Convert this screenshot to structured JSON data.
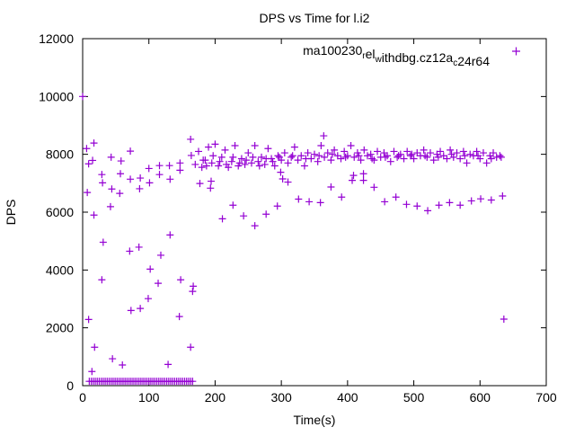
{
  "chart_data": {
    "type": "scatter",
    "title": "DPS vs Time for l.i2",
    "xlabel": "Time(s)",
    "ylabel": "DPS",
    "xlim": [
      0,
      700
    ],
    "ylim": [
      0,
      12000
    ],
    "xticks": [
      0,
      100,
      200,
      300,
      400,
      500,
      600,
      700
    ],
    "yticks": [
      0,
      2000,
      4000,
      6000,
      8000,
      10000,
      12000
    ],
    "grid": false,
    "legend_position": "top-right",
    "series": [
      {
        "name": "ma100230_rel_withdbg.cz12a_c24r64",
        "color": "#9400d3",
        "marker": "plus",
        "points": [
          [
            0,
            10000
          ],
          [
            6,
            8200
          ],
          [
            17,
            8390
          ],
          [
            9,
            7670
          ],
          [
            15,
            7790
          ],
          [
            7,
            6680
          ],
          [
            17,
            5900
          ],
          [
            29,
            7300
          ],
          [
            30,
            7015
          ],
          [
            43,
            7900
          ],
          [
            44,
            6800
          ],
          [
            42,
            6190
          ],
          [
            31,
            4960
          ],
          [
            29,
            3660
          ],
          [
            9,
            2290
          ],
          [
            18,
            1330
          ],
          [
            14,
            490
          ],
          [
            45,
            930
          ],
          [
            60,
            715
          ],
          [
            58,
            7770
          ],
          [
            57,
            7330
          ],
          [
            56,
            6650
          ],
          [
            72,
            8110
          ],
          [
            72,
            7140
          ],
          [
            71,
            4650
          ],
          [
            73,
            2600
          ],
          [
            87,
            7180
          ],
          [
            86,
            6810
          ],
          [
            85,
            4790
          ],
          [
            87,
            2670
          ],
          [
            100,
            7510
          ],
          [
            101,
            7015
          ],
          [
            102,
            4030
          ],
          [
            99,
            3010
          ],
          [
            116,
            7610
          ],
          [
            116,
            7300
          ],
          [
            118,
            4510
          ],
          [
            114,
            3540
          ],
          [
            131,
            7610
          ],
          [
            132,
            7140
          ],
          [
            132,
            5210
          ],
          [
            129,
            735
          ],
          [
            147,
            7700
          ],
          [
            147,
            7450
          ],
          [
            148,
            3660
          ],
          [
            146,
            2390
          ],
          [
            163,
            8520
          ],
          [
            164,
            7960
          ],
          [
            167,
            3440
          ],
          [
            166,
            3260
          ],
          [
            163,
            1330
          ],
          [
            10,
            150
          ],
          [
            13,
            150
          ],
          [
            16,
            150
          ],
          [
            19,
            150
          ],
          [
            22,
            150
          ],
          [
            25,
            150
          ],
          [
            28,
            150
          ],
          [
            31,
            150
          ],
          [
            34,
            150
          ],
          [
            37,
            150
          ],
          [
            40,
            150
          ],
          [
            43,
            150
          ],
          [
            46,
            150
          ],
          [
            49,
            150
          ],
          [
            52,
            150
          ],
          [
            55,
            150
          ],
          [
            58,
            150
          ],
          [
            61,
            150
          ],
          [
            64,
            150
          ],
          [
            67,
            150
          ],
          [
            70,
            150
          ],
          [
            73,
            150
          ],
          [
            76,
            150
          ],
          [
            79,
            150
          ],
          [
            82,
            150
          ],
          [
            85,
            150
          ],
          [
            88,
            150
          ],
          [
            91,
            150
          ],
          [
            94,
            150
          ],
          [
            97,
            150
          ],
          [
            100,
            150
          ],
          [
            103,
            150
          ],
          [
            106,
            150
          ],
          [
            109,
            150
          ],
          [
            112,
            150
          ],
          [
            115,
            150
          ],
          [
            118,
            150
          ],
          [
            121,
            150
          ],
          [
            124,
            150
          ],
          [
            127,
            150
          ],
          [
            130,
            150
          ],
          [
            133,
            150
          ],
          [
            136,
            150
          ],
          [
            139,
            150
          ],
          [
            142,
            150
          ],
          [
            145,
            150
          ],
          [
            148,
            150
          ],
          [
            151,
            150
          ],
          [
            154,
            150
          ],
          [
            157,
            150
          ],
          [
            160,
            150
          ],
          [
            163,
            150
          ],
          [
            166,
            150
          ],
          [
            364,
            8640
          ],
          [
            177,
            6990
          ],
          [
            194,
            7070
          ],
          [
            193,
            6830
          ],
          [
            227,
            6240
          ],
          [
            211,
            5770
          ],
          [
            243,
            5870
          ],
          [
            260,
            5530
          ],
          [
            277,
            5930
          ],
          [
            294,
            6210
          ],
          [
            302,
            7150
          ],
          [
            310,
            7040
          ],
          [
            326,
            6450
          ],
          [
            342,
            6360
          ],
          [
            359,
            6330
          ],
          [
            375,
            6870
          ],
          [
            391,
            6520
          ],
          [
            409,
            7270
          ],
          [
            407,
            7100
          ],
          [
            299,
            7380
          ],
          [
            424,
            7330
          ],
          [
            424,
            7100
          ],
          [
            440,
            6860
          ],
          [
            456,
            6360
          ],
          [
            473,
            6520
          ],
          [
            489,
            6270
          ],
          [
            505,
            6210
          ],
          [
            521,
            6050
          ],
          [
            538,
            6240
          ],
          [
            554,
            6330
          ],
          [
            570,
            6240
          ],
          [
            587,
            6390
          ],
          [
            601,
            6460
          ],
          [
            617,
            6420
          ],
          [
            634,
            6560
          ],
          [
            636,
            2300
          ],
          [
            170,
            7650
          ],
          [
            175,
            8100
          ],
          [
            180,
            7550
          ],
          [
            185,
            7800
          ],
          [
            190,
            8250
          ],
          [
            195,
            7700
          ],
          [
            200,
            8350
          ],
          [
            205,
            7600
          ],
          [
            210,
            7900
          ],
          [
            215,
            8150
          ],
          [
            220,
            7550
          ],
          [
            225,
            7750
          ],
          [
            230,
            8300
          ],
          [
            235,
            7600
          ],
          [
            240,
            7850
          ],
          [
            245,
            7650
          ],
          [
            250,
            8050
          ],
          [
            255,
            7700
          ],
          [
            260,
            8300
          ],
          [
            265,
            7750
          ],
          [
            270,
            7900
          ],
          [
            275,
            7650
          ],
          [
            280,
            8200
          ],
          [
            285,
            7850
          ],
          [
            290,
            7600
          ],
          [
            295,
            7950
          ],
          [
            300,
            7800
          ],
          [
            305,
            8050
          ],
          [
            310,
            7700
          ],
          [
            315,
            7900
          ],
          [
            320,
            8250
          ],
          [
            325,
            7800
          ],
          [
            330,
            7950
          ],
          [
            335,
            7600
          ],
          [
            340,
            8050
          ],
          [
            345,
            7850
          ],
          [
            350,
            8000
          ],
          [
            355,
            7750
          ],
          [
            360,
            8300
          ],
          [
            365,
            7900
          ],
          [
            370,
            8050
          ],
          [
            375,
            7800
          ],
          [
            380,
            8150
          ],
          [
            385,
            7950
          ],
          [
            390,
            7850
          ],
          [
            395,
            8100
          ],
          [
            400,
            7950
          ],
          [
            405,
            8300
          ],
          [
            410,
            7900
          ],
          [
            415,
            8050
          ],
          [
            420,
            7800
          ],
          [
            425,
            8150
          ],
          [
            430,
            7950
          ],
          [
            435,
            8000
          ],
          [
            440,
            7800
          ],
          [
            445,
            8100
          ],
          [
            450,
            7900
          ],
          [
            455,
            8050
          ],
          [
            460,
            7950
          ],
          [
            465,
            7750
          ],
          [
            470,
            8100
          ],
          [
            475,
            7900
          ],
          [
            480,
            8000
          ],
          [
            485,
            7850
          ],
          [
            490,
            8100
          ],
          [
            495,
            7950
          ],
          [
            500,
            7850
          ],
          [
            505,
            8050
          ],
          [
            510,
            7950
          ],
          [
            515,
            8150
          ],
          [
            520,
            7900
          ],
          [
            525,
            8050
          ],
          [
            530,
            7800
          ],
          [
            535,
            8000
          ],
          [
            540,
            8100
          ],
          [
            545,
            7950
          ],
          [
            550,
            7850
          ],
          [
            555,
            8150
          ],
          [
            560,
            7900
          ],
          [
            565,
            8050
          ],
          [
            570,
            7850
          ],
          [
            575,
            8100
          ],
          [
            580,
            7700
          ],
          [
            585,
            8000
          ],
          [
            590,
            7950
          ],
          [
            595,
            8100
          ],
          [
            600,
            7850
          ],
          [
            605,
            8050
          ],
          [
            610,
            7700
          ],
          [
            615,
            7950
          ],
          [
            620,
            8050
          ],
          [
            625,
            7900
          ],
          [
            630,
            7950
          ],
          [
            182,
            7800
          ],
          [
            187,
            7600
          ],
          [
            197,
            7950
          ],
          [
            207,
            7750
          ],
          [
            217,
            7650
          ],
          [
            227,
            7900
          ],
          [
            237,
            7700
          ],
          [
            247,
            7800
          ],
          [
            257,
            7900
          ],
          [
            267,
            7600
          ],
          [
            277,
            7850
          ],
          [
            287,
            7750
          ],
          [
            297,
            7900
          ],
          [
            317,
            7950
          ],
          [
            337,
            7850
          ],
          [
            357,
            7950
          ],
          [
            377,
            8000
          ],
          [
            397,
            7900
          ],
          [
            417,
            7950
          ],
          [
            437,
            7850
          ],
          [
            457,
            7900
          ],
          [
            477,
            7950
          ],
          [
            497,
            8000
          ],
          [
            517,
            7950
          ],
          [
            537,
            7900
          ],
          [
            557,
            8000
          ],
          [
            577,
            7950
          ],
          [
            597,
            7950
          ],
          [
            617,
            7850
          ],
          [
            632,
            7900
          ]
        ]
      }
    ]
  }
}
